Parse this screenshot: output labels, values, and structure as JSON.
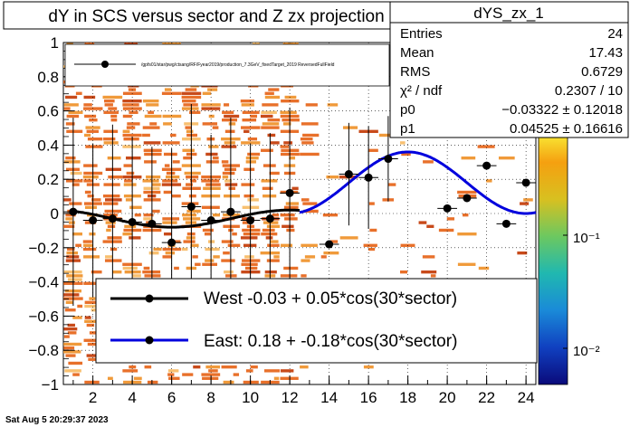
{
  "canvas": {
    "title": "dY in SCS versus sector and Z zx projection",
    "timestamp": "Sat Aug  5 20:29:37 2023"
  },
  "chart_data": {
    "type": "scatter",
    "title": "dY in SCS versus sector and Z zx projection",
    "xlim": [
      0.5,
      24.5
    ],
    "ylim": [
      -1,
      1
    ],
    "x_ticks": [
      "2",
      "4",
      "6",
      "8",
      "10",
      "12",
      "14",
      "16",
      "18",
      "20",
      "22",
      "24"
    ],
    "y_ticks": [
      "1",
      "0.8",
      "0.6",
      "0.4",
      "0.2",
      "0",
      "−0.2",
      "−0.4",
      "−0.6",
      "−0.8",
      "−1"
    ],
    "x_tick_values": [
      2,
      4,
      6,
      8,
      10,
      12,
      14,
      16,
      18,
      20,
      22,
      24
    ],
    "y_tick_values": [
      1,
      0.8,
      0.6,
      0.4,
      0.2,
      0,
      -0.2,
      -0.4,
      -0.6,
      -0.8,
      -1
    ],
    "grid": true,
    "series": [
      {
        "name": "/gpfs01/star/pwg/ctsang/RF/Fyear2019/production_7.3GeV_fixedTarget_2019 ReversedFullField",
        "x": [
          1,
          2,
          3,
          4,
          5,
          6,
          7,
          8,
          9,
          10,
          11,
          12,
          14,
          15,
          16,
          17,
          20,
          21,
          22,
          23,
          24
        ],
        "y": [
          0.01,
          -0.04,
          -0.03,
          -0.05,
          -0.06,
          -0.17,
          0.04,
          -0.04,
          0.01,
          -0.04,
          -0.03,
          0.12,
          -0.18,
          0.23,
          0.21,
          0.32,
          0.03,
          0.09,
          0.28,
          -0.06,
          0.18
        ],
        "yerr": [
          0.55,
          0.45,
          0.55,
          0.5,
          0.45,
          0.55,
          0.6,
          0.5,
          0.55,
          0.45,
          0.5,
          0.5,
          0,
          0.3,
          0.3,
          0.25,
          0,
          0,
          0,
          0,
          0
        ]
      }
    ],
    "fits": [
      {
        "label": "West -0.03 +  0.05*cos(30*sector)",
        "color": "#000000",
        "p0": -0.03,
        "p1": 0.05,
        "x_range": [
          1,
          12.5
        ]
      },
      {
        "label": "East:  0.18 + -0.18*cos(30*sector)",
        "color": "#0000dd",
        "p0": 0.18,
        "p1": -0.18,
        "x_range": [
          12.5,
          24.5
        ]
      }
    ],
    "color_scale": {
      "labels": [
        "10⁻¹",
        "10⁻²"
      ],
      "values": [
        0.1,
        0.01
      ]
    }
  },
  "stats": {
    "name": "dYS_zx_1",
    "rows": [
      {
        "label": "Entries",
        "value": "24"
      },
      {
        "label": "Mean",
        "value": "17.43"
      },
      {
        "label": "RMS",
        "value": "0.6729"
      },
      {
        "label": "χ² / ndf",
        "value": "0.2307 / 10"
      },
      {
        "label": "p0",
        "value": "−0.03322 ± 0.12018"
      },
      {
        "label": "p1",
        "value": "0.04525 ± 0.16616"
      }
    ]
  },
  "legend": {
    "top_entry": "/gpfs01/star/pwg/ctsang/RF/Fyear2019/production_7.3GeV_fixedTarget_2019 ReversedFullField",
    "west": "West -0.03 +  0.05*cos(30*sector)",
    "east": "East:  0.18 + -0.18*cos(30*sector)"
  }
}
